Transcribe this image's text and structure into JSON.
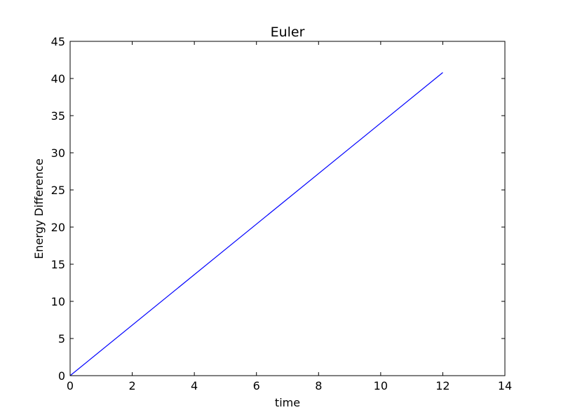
{
  "chart_data": {
    "type": "line",
    "title": "Euler",
    "xlabel": "time",
    "ylabel": "Energy Difference",
    "xlim": [
      0,
      14
    ],
    "ylim": [
      0,
      45
    ],
    "xticks": [
      0,
      2,
      4,
      6,
      8,
      10,
      12,
      14
    ],
    "yticks": [
      0,
      5,
      10,
      15,
      20,
      25,
      30,
      35,
      40,
      45
    ],
    "grid": false,
    "legend": "none",
    "series": [
      {
        "color": "#0000ff",
        "x": [
          0,
          12
        ],
        "y": [
          0,
          40.8
        ]
      }
    ]
  }
}
